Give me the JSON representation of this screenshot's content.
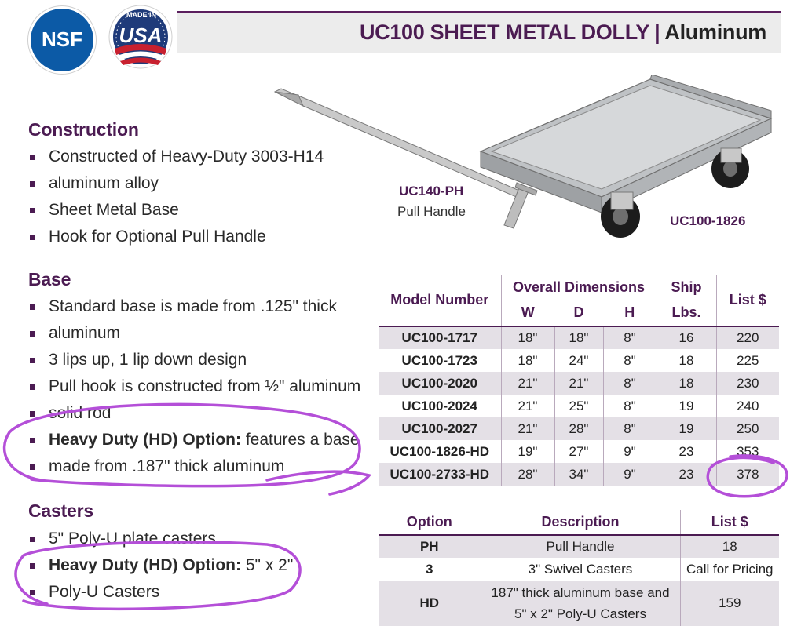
{
  "header": {
    "title_model": "UC100 SHEET METAL DOLLY",
    "title_sep": "|",
    "title_material": "Aluminum"
  },
  "logos": {
    "nsf": "NSF",
    "usa_made": "MADE IN",
    "usa_text": "USA"
  },
  "colors": {
    "brand": "#4b1b52",
    "nsf_blue": "#0c5aa6",
    "table_shade": "#e4e0e6",
    "annotation": "#b44fd8"
  },
  "construction": {
    "heading": "Construction",
    "items": [
      {
        "text": "Constructed of Heavy-Duty 3003-H14"
      },
      {
        "text": "aluminum alloy"
      },
      {
        "text": "Sheet Metal Base"
      },
      {
        "text": "Hook for Optional Pull Handle"
      }
    ]
  },
  "base": {
    "heading": "Base",
    "items": [
      {
        "text": "Standard base is made from .125\" thick"
      },
      {
        "text": "aluminum"
      },
      {
        "text": "3 lips up, 1 lip down design"
      },
      {
        "text": "Pull hook is constructed from ½\" aluminum"
      },
      {
        "text": "solid rod"
      },
      {
        "bold": "Heavy Duty (HD) Option:",
        "text": " features a base"
      },
      {
        "text": "made from .187\" thick aluminum"
      }
    ]
  },
  "casters": {
    "heading": "Casters",
    "items": [
      {
        "text": "5\" Poly-U plate casters"
      },
      {
        "bold": "Heavy Duty (HD) Option:",
        "text": " 5\" x 2\""
      },
      {
        "text": "Poly-U Casters"
      }
    ]
  },
  "product_labels": {
    "handle_code": "UC140-PH",
    "handle_name": "Pull Handle",
    "dolly_code": "UC100-1826"
  },
  "models_table": {
    "headers": {
      "model": "Model Number",
      "overall": "Overall Dimensions",
      "w": "W",
      "d": "D",
      "h": "H",
      "ship": "Ship",
      "lbs": "Lbs.",
      "list": "List $"
    },
    "rows": [
      {
        "model": "UC100-1717",
        "w": "18\"",
        "d": "18\"",
        "h": "8\"",
        "lbs": "16",
        "list": "220"
      },
      {
        "model": "UC100-1723",
        "w": "18\"",
        "d": "24\"",
        "h": "8\"",
        "lbs": "18",
        "list": "225"
      },
      {
        "model": "UC100-2020",
        "w": "21\"",
        "d": "21\"",
        "h": "8\"",
        "lbs": "18",
        "list": "230"
      },
      {
        "model": "UC100-2024",
        "w": "21\"",
        "d": "25\"",
        "h": "8\"",
        "lbs": "19",
        "list": "240"
      },
      {
        "model": "UC100-2027",
        "w": "21\"",
        "d": "28\"",
        "h": "8\"",
        "lbs": "19",
        "list": "250"
      },
      {
        "model": "UC100-1826-HD",
        "w": "19\"",
        "d": "27\"",
        "h": "9\"",
        "lbs": "23",
        "list": "353"
      },
      {
        "model": "UC100-2733-HD",
        "w": "28\"",
        "d": "34\"",
        "h": "9\"",
        "lbs": "23",
        "list": "378"
      }
    ]
  },
  "options_table": {
    "headers": {
      "option": "Option",
      "description": "Description",
      "list": "List $"
    },
    "rows": [
      {
        "option": "PH",
        "description": "Pull Handle",
        "list": "18"
      },
      {
        "option": "3",
        "description": "3\" Swivel Casters",
        "list": "Call for Pricing"
      },
      {
        "option": "HD",
        "description_line1": "187\" thick aluminum base and",
        "description_line2": "5\" x 2\" Poly-U Casters",
        "list": "159"
      }
    ]
  }
}
